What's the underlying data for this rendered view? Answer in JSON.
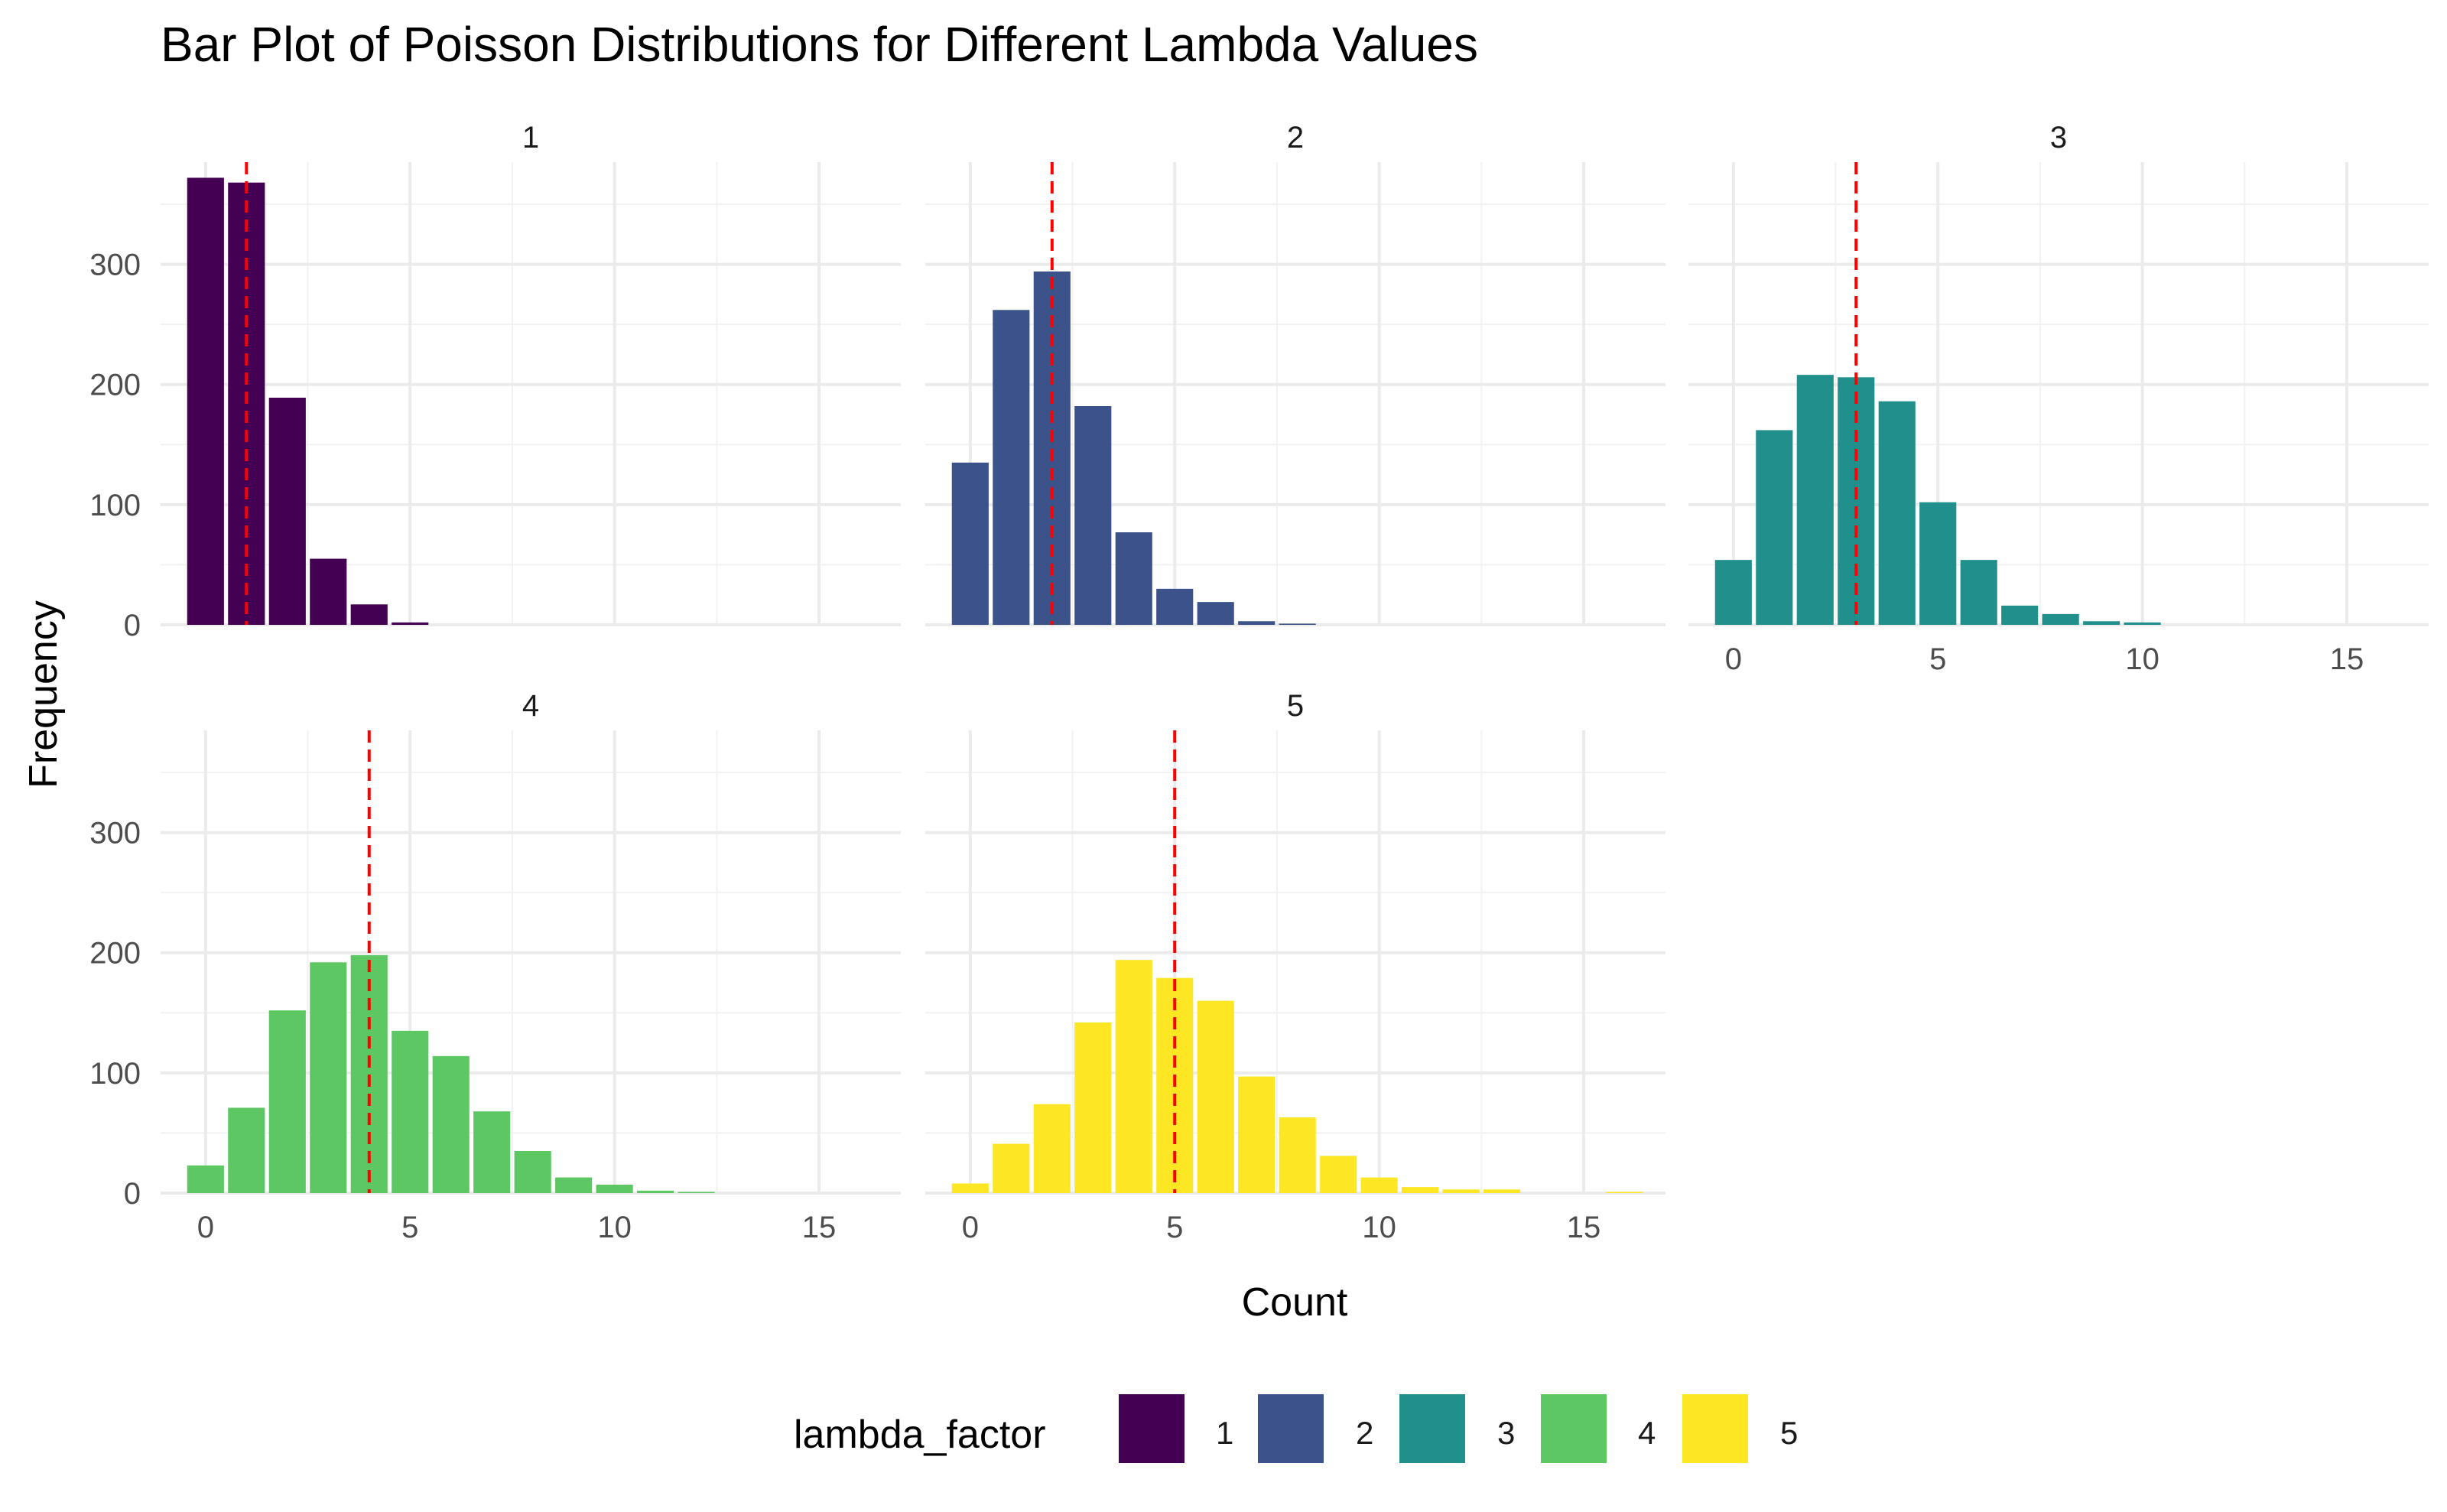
{
  "chart_data": {
    "type": "bar",
    "title": "Bar Plot of Poisson Distributions for Different Lambda Values",
    "xlabel": "Count",
    "ylabel": "Frequency",
    "xlim": [
      -1.1,
      17
    ],
    "ylim": [
      0,
      385
    ],
    "x_ticks": [
      0,
      5,
      10,
      15
    ],
    "y_ticks": [
      0,
      100,
      200,
      300
    ],
    "grid": true,
    "legend": {
      "title": "lambda_factor",
      "position": "bottom",
      "labels": [
        "1",
        "2",
        "3",
        "4",
        "5"
      ]
    },
    "reference_line": {
      "style": "dashed",
      "color": "#ff0000",
      "description": "vertical line at x = lambda"
    },
    "panels": [
      {
        "name": "1",
        "lambda": 1,
        "color": "#440154",
        "x": [
          0,
          1,
          2,
          3,
          4,
          5
        ],
        "values": [
          372,
          368,
          189,
          55,
          17,
          2
        ]
      },
      {
        "name": "2",
        "lambda": 2,
        "color": "#3B528B",
        "x": [
          0,
          1,
          2,
          3,
          4,
          5,
          6,
          7,
          8
        ],
        "values": [
          135,
          262,
          294,
          182,
          77,
          30,
          19,
          3,
          1
        ]
      },
      {
        "name": "3",
        "lambda": 3,
        "color": "#21908C",
        "x": [
          0,
          1,
          2,
          3,
          4,
          5,
          6,
          7,
          8,
          9,
          10
        ],
        "values": [
          54,
          162,
          208,
          206,
          186,
          102,
          54,
          16,
          9,
          3,
          2
        ]
      },
      {
        "name": "4",
        "lambda": 4,
        "color": "#5DC863",
        "x": [
          0,
          1,
          2,
          3,
          4,
          5,
          6,
          7,
          8,
          9,
          10,
          11,
          12
        ],
        "values": [
          23,
          71,
          152,
          192,
          198,
          135,
          114,
          68,
          35,
          13,
          7,
          2,
          1
        ]
      },
      {
        "name": "5",
        "lambda": 5,
        "color": "#FDE725",
        "x": [
          0,
          1,
          2,
          3,
          4,
          5,
          6,
          7,
          8,
          9,
          10,
          11,
          12,
          13,
          16
        ],
        "values": [
          8,
          41,
          74,
          142,
          194,
          179,
          160,
          97,
          63,
          31,
          13,
          5,
          3,
          3,
          1
        ]
      }
    ]
  }
}
